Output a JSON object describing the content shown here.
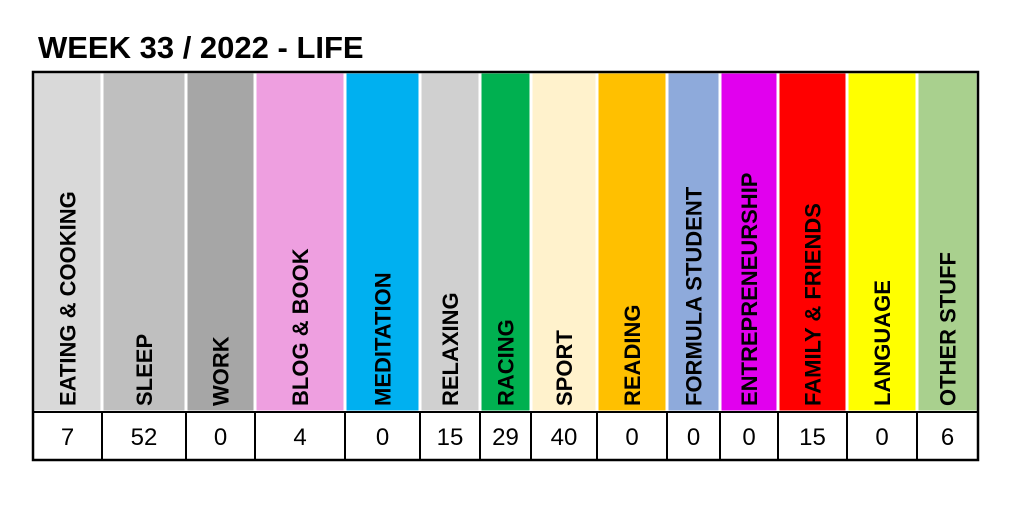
{
  "title": "WEEK 33 / 2022 - LIFE",
  "table": {
    "headers": [
      "EATING & COOKING",
      "SLEEP",
      "WORK",
      "BLOG & BOOK",
      "MEDITATION",
      "RELAXING",
      "RACING",
      "SPORT",
      "READING",
      "FORMULA STUDENT",
      "ENTREPRENEURSHIP",
      "FAMILY & FRIENDS",
      "LANGUAGE",
      "OTHER STUFF"
    ],
    "values": [
      7,
      52,
      0,
      4,
      0,
      15,
      29,
      40,
      0,
      0,
      0,
      15,
      0,
      6
    ],
    "colors": [
      "#d9d9d9",
      "#bfbfbf",
      "#a6a6a6",
      "#ee9fe0",
      "#00b0f0",
      "#d0d0d0",
      "#00b050",
      "#fff2cc",
      "#ffc000",
      "#8eaadb",
      "#e100ee",
      "#ff0000",
      "#ffff00",
      "#a9d08e"
    ]
  }
}
